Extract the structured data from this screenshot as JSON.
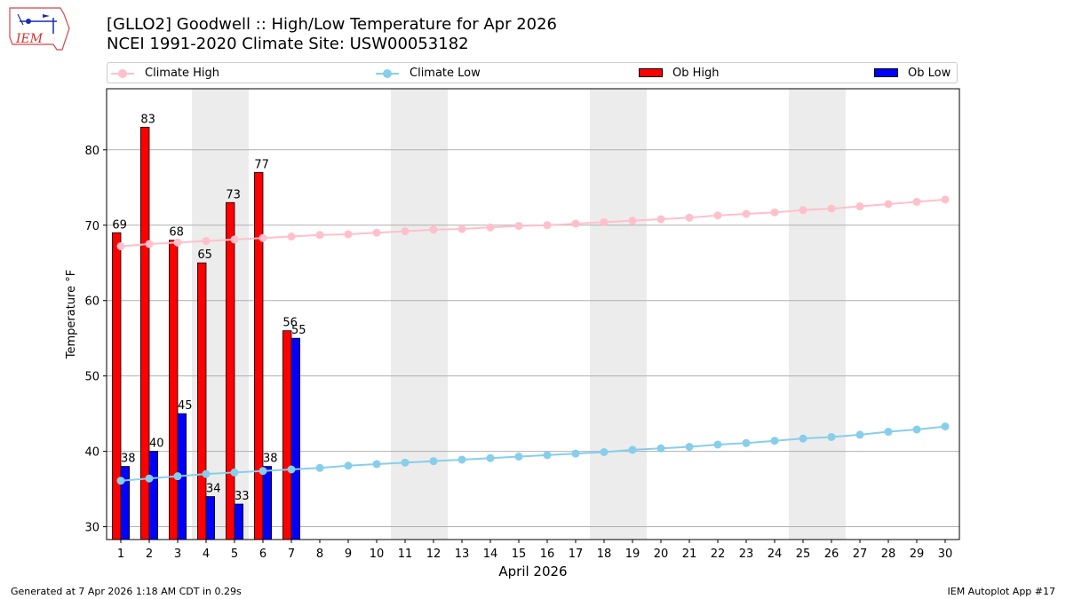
{
  "logo": {
    "text": "IEM"
  },
  "title_line1": "[GLLO2] Goodwell :: High/Low Temperature for Apr 2026",
  "title_line2": "NCEI 1991-2020 Climate Site: USW00053182",
  "footer_left": "Generated at 7 Apr 2026 1:18 AM CDT in 0.29s",
  "footer_right": "IEM Autoplot App #17",
  "colors": {
    "ob_high": "#ff0000",
    "ob_low": "#0000ff",
    "climate_high": "#ffc0cb",
    "climate_low": "#87ceeb",
    "weekend_shade": "#ececec",
    "grid": "#b0b0b0"
  },
  "chart_data": {
    "type": "bar",
    "xlabel": "April 2026",
    "ylabel": "Temperature °F",
    "x": [
      1,
      2,
      3,
      4,
      5,
      6,
      7,
      8,
      9,
      10,
      11,
      12,
      13,
      14,
      15,
      16,
      17,
      18,
      19,
      20,
      21,
      22,
      23,
      24,
      25,
      26,
      27,
      28,
      29,
      30
    ],
    "xlim": [
      0.5,
      30.5
    ],
    "ylim": [
      28.3,
      88.1
    ],
    "yticks": [
      30,
      40,
      50,
      60,
      70,
      80
    ],
    "grid": "horizontal",
    "legend_position": "top",
    "shaded_weekends": [
      [
        4,
        5
      ],
      [
        11,
        12
      ],
      [
        18,
        19
      ],
      [
        25,
        26
      ]
    ],
    "series": [
      {
        "name": "Ob High",
        "kind": "bar",
        "x": [
          1,
          2,
          3,
          4,
          5,
          6,
          7
        ],
        "values": [
          69,
          83,
          68,
          65,
          73,
          77,
          56
        ],
        "labels": [
          "69",
          "83",
          "68",
          "65",
          "73",
          "77",
          "56"
        ]
      },
      {
        "name": "Ob Low",
        "kind": "bar",
        "x": [
          1,
          2,
          3,
          4,
          5,
          6,
          7
        ],
        "values": [
          38,
          40,
          45,
          34,
          33,
          38,
          55
        ],
        "labels": [
          "38",
          "40",
          "45",
          "34",
          "33",
          "38",
          "55"
        ]
      },
      {
        "name": "Climate High",
        "kind": "line",
        "values": [
          67.2,
          67.5,
          67.7,
          67.9,
          68.1,
          68.3,
          68.5,
          68.7,
          68.8,
          69.0,
          69.2,
          69.4,
          69.5,
          69.7,
          69.9,
          70.0,
          70.2,
          70.4,
          70.6,
          70.8,
          71.0,
          71.3,
          71.5,
          71.7,
          72.0,
          72.2,
          72.5,
          72.8,
          73.1,
          73.4
        ]
      },
      {
        "name": "Climate Low",
        "kind": "line",
        "values": [
          36.1,
          36.4,
          36.7,
          37.0,
          37.2,
          37.4,
          37.6,
          37.8,
          38.1,
          38.3,
          38.5,
          38.7,
          38.9,
          39.1,
          39.3,
          39.5,
          39.7,
          39.9,
          40.2,
          40.4,
          40.6,
          40.9,
          41.1,
          41.4,
          41.7,
          41.9,
          42.2,
          42.6,
          42.9,
          43.3
        ]
      }
    ]
  }
}
